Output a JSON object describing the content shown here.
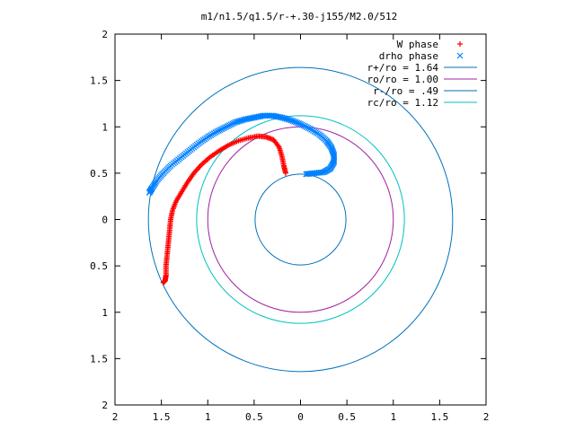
{
  "chart_data": {
    "type": "scatter",
    "title": "m1/n1.5/q1.5/r-+.30-j155/M2.0/512",
    "xlim": [
      -2,
      2
    ],
    "ylim": [
      -2,
      2
    ],
    "x_tick_values": [
      -2,
      -1.5,
      -1,
      -0.5,
      0,
      0.5,
      1,
      1.5,
      2
    ],
    "y_tick_values": [
      -2,
      -1.5,
      -1,
      -0.5,
      0,
      0.5,
      1,
      1.5,
      2
    ],
    "x_tick_labels": [
      "2",
      "1.5",
      "1",
      "0.5",
      "0",
      "0.5",
      "1",
      "1.5",
      "2"
    ],
    "y_tick_labels": [
      "2",
      "1.5",
      "1",
      "0.5",
      "0",
      "0.5",
      "1",
      "1.5",
      "2"
    ],
    "grid": false,
    "legend_position": "top-right",
    "series": [
      {
        "name": "W phase",
        "marker": "+",
        "color": "#ff0000",
        "points": [
          [
            -1.48,
            -0.68
          ],
          [
            -1.46,
            -0.66
          ],
          [
            -1.45,
            -0.6
          ],
          [
            -1.45,
            -0.5
          ],
          [
            -1.44,
            -0.4
          ],
          [
            -1.43,
            -0.3
          ],
          [
            -1.42,
            -0.2
          ],
          [
            -1.41,
            -0.1
          ],
          [
            -1.4,
            0.0
          ],
          [
            -1.38,
            0.1
          ],
          [
            -1.34,
            0.2
          ],
          [
            -1.28,
            0.3
          ],
          [
            -1.22,
            0.4
          ],
          [
            -1.15,
            0.5
          ],
          [
            -1.07,
            0.59
          ],
          [
            -0.98,
            0.67
          ],
          [
            -0.88,
            0.74
          ],
          [
            -0.78,
            0.8
          ],
          [
            -0.67,
            0.85
          ],
          [
            -0.56,
            0.88
          ],
          [
            -0.46,
            0.9
          ],
          [
            -0.37,
            0.89
          ],
          [
            -0.29,
            0.86
          ],
          [
            -0.23,
            0.78
          ],
          [
            -0.2,
            0.68
          ],
          [
            -0.18,
            0.58
          ],
          [
            -0.16,
            0.5
          ]
        ]
      },
      {
        "name": "drho phase",
        "marker": "x",
        "color": "#0080ff",
        "points": [
          [
            -1.63,
            0.29
          ],
          [
            -1.6,
            0.34
          ],
          [
            -1.55,
            0.42
          ],
          [
            -1.48,
            0.5
          ],
          [
            -1.4,
            0.58
          ],
          [
            -1.3,
            0.66
          ],
          [
            -1.2,
            0.74
          ],
          [
            -1.1,
            0.82
          ],
          [
            -1.0,
            0.89
          ],
          [
            -0.9,
            0.95
          ],
          [
            -0.8,
            1.0
          ],
          [
            -0.7,
            1.05
          ],
          [
            -0.6,
            1.08
          ],
          [
            -0.5,
            1.1
          ],
          [
            -0.4,
            1.12
          ],
          [
            -0.3,
            1.12
          ],
          [
            -0.2,
            1.1
          ],
          [
            -0.1,
            1.07
          ],
          [
            0.0,
            1.03
          ],
          [
            0.1,
            0.98
          ],
          [
            0.2,
            0.92
          ],
          [
            0.28,
            0.85
          ],
          [
            0.33,
            0.78
          ],
          [
            0.36,
            0.7
          ],
          [
            0.36,
            0.62
          ],
          [
            0.32,
            0.55
          ],
          [
            0.25,
            0.51
          ],
          [
            0.15,
            0.5
          ],
          [
            0.06,
            0.49
          ]
        ]
      },
      {
        "name": "r+/ro = 1.64",
        "type": "circle",
        "radius": 1.64,
        "color": "#0072bd"
      },
      {
        "name": "ro/ro = 1.00",
        "type": "circle",
        "radius": 1.0,
        "color": "#a020a0"
      },
      {
        "name": "r-/ro = .49",
        "type": "circle",
        "radius": 0.49,
        "color": "#0072bd"
      },
      {
        "name": "rc/ro = 1.12",
        "type": "circle",
        "radius": 1.12,
        "color": "#00c0c0"
      }
    ]
  }
}
